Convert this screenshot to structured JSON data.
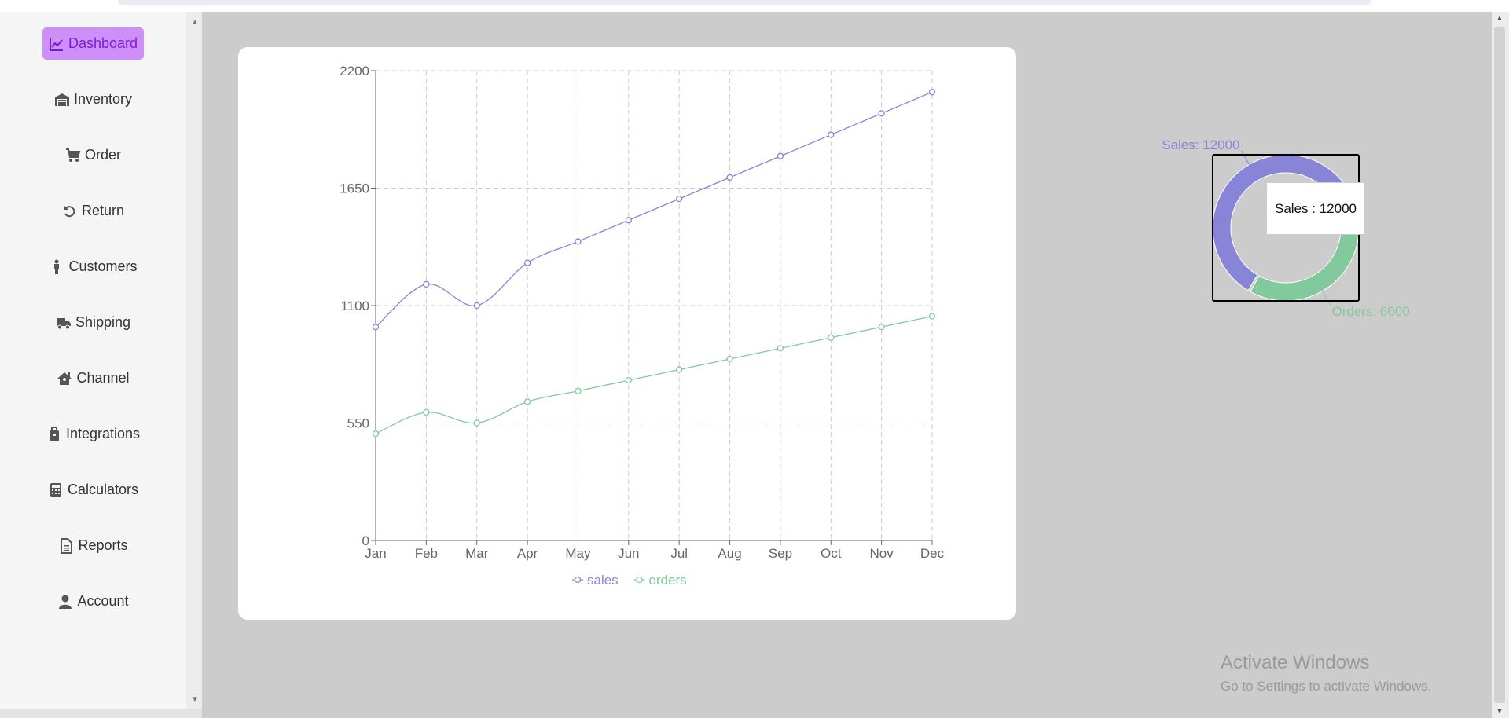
{
  "sidebar": {
    "items": [
      {
        "label": "Dashboard",
        "icon": "line-chart-icon",
        "active": true
      },
      {
        "label": "Inventory",
        "icon": "warehouse-icon"
      },
      {
        "label": "Order",
        "icon": "cart-icon"
      },
      {
        "label": "Return",
        "icon": "undo-icon"
      },
      {
        "label": "Customers",
        "icon": "person-icon"
      },
      {
        "label": "Shipping",
        "icon": "truck-icon"
      },
      {
        "label": "Channel",
        "icon": "house-user-icon"
      },
      {
        "label": "Integrations",
        "icon": "suitcase-icon"
      },
      {
        "label": "Calculators",
        "icon": "calculator-icon"
      },
      {
        "label": "Reports",
        "icon": "document-icon"
      },
      {
        "label": "Account",
        "icon": "user-icon"
      }
    ]
  },
  "chart_data": [
    {
      "type": "line",
      "x": [
        "Jan",
        "Feb",
        "Mar",
        "Apr",
        "May",
        "Jun",
        "Jul",
        "Aug",
        "Sep",
        "Oct",
        "Nov",
        "Dec"
      ],
      "series": [
        {
          "name": "sales",
          "color": "#8884d8",
          "values": [
            1000,
            1200,
            1100,
            1300,
            1400,
            1500,
            1600,
            1700,
            1800,
            1900,
            2000,
            2100
          ]
        },
        {
          "name": "orders",
          "color": "#82ca9d",
          "values": [
            500,
            600,
            550,
            650,
            700,
            750,
            800,
            850,
            900,
            950,
            1000,
            1050
          ]
        }
      ],
      "y_ticks": [
        "0",
        "550",
        "1100",
        "1650",
        "2200"
      ],
      "ylim": [
        0,
        2200
      ],
      "grid": true,
      "legend_position": "bottom"
    },
    {
      "type": "pie",
      "slices": [
        {
          "name": "Sales",
          "value": 12000,
          "color": "#8884d8",
          "label": "Sales: 12000"
        },
        {
          "name": "Orders",
          "value": 6000,
          "color": "#82ca9d",
          "label": "Orders: 6000"
        }
      ]
    }
  ],
  "tooltip": {
    "text": "Sales : 12000"
  },
  "watermark": {
    "title": "Activate Windows",
    "subtitle": "Go to Settings to activate Windows."
  }
}
